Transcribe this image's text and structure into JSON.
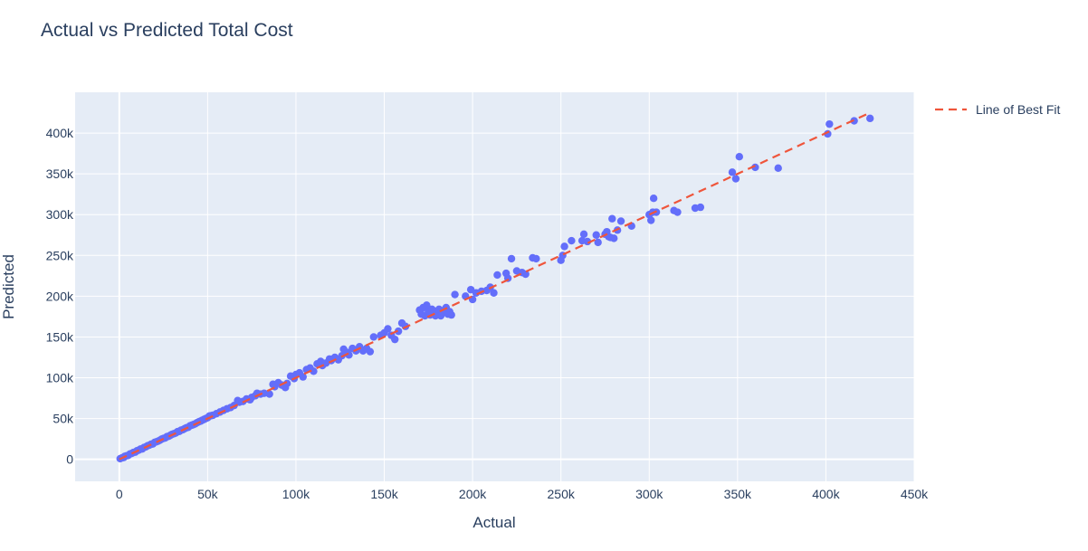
{
  "chart_data": {
    "type": "scatter",
    "title": "Actual vs Predicted Total Cost",
    "xlabel": "Actual",
    "ylabel": "Predicted",
    "xlim": [
      -25000,
      450000
    ],
    "ylim": [
      -27000,
      450000
    ],
    "x_ticks": [
      0,
      50000,
      100000,
      150000,
      200000,
      250000,
      300000,
      350000,
      400000,
      450000
    ],
    "x_tick_labels": [
      "0",
      "50k",
      "100k",
      "150k",
      "200k",
      "250k",
      "300k",
      "350k",
      "400k",
      "450k"
    ],
    "y_ticks": [
      0,
      50000,
      100000,
      150000,
      200000,
      250000,
      300000,
      350000,
      400000
    ],
    "y_tick_labels": [
      "0",
      "50k",
      "100k",
      "150k",
      "200k",
      "250k",
      "300k",
      "350k",
      "400k"
    ],
    "grid": true,
    "legend_position": "top-right",
    "colors": {
      "points": "#636efa",
      "fit_line": "#ef553b",
      "plot_bg": "#e5ecf6",
      "grid": "#ffffff",
      "text": "#2a3f5f"
    },
    "series": [
      {
        "type": "scatter",
        "points": [
          [
            500,
            800
          ],
          [
            1500,
            1800
          ],
          [
            2500,
            2200
          ],
          [
            3000,
            3500
          ],
          [
            4000,
            4300
          ],
          [
            5000,
            4700
          ],
          [
            6000,
            6500
          ],
          [
            7000,
            7200
          ],
          [
            8000,
            8400
          ],
          [
            9000,
            8800
          ],
          [
            10000,
            10500
          ],
          [
            11000,
            11200
          ],
          [
            12000,
            12600
          ],
          [
            13000,
            12800
          ],
          [
            14000,
            14500
          ],
          [
            15000,
            15200
          ],
          [
            16000,
            16600
          ],
          [
            17000,
            17300
          ],
          [
            18000,
            18500
          ],
          [
            19000,
            18900
          ],
          [
            20000,
            20800
          ],
          [
            21000,
            21500
          ],
          [
            22000,
            22300
          ],
          [
            23000,
            23400
          ],
          [
            24000,
            24800
          ],
          [
            25000,
            25600
          ],
          [
            26000,
            26200
          ],
          [
            27000,
            27800
          ],
          [
            28000,
            28300
          ],
          [
            29000,
            29600
          ],
          [
            30000,
            30800
          ],
          [
            31000,
            31500
          ],
          [
            32000,
            32300
          ],
          [
            33000,
            33900
          ],
          [
            34000,
            34300
          ],
          [
            35000,
            35800
          ],
          [
            36000,
            36300
          ],
          [
            37000,
            37600
          ],
          [
            38000,
            38700
          ],
          [
            39000,
            39200
          ],
          [
            40000,
            41000
          ],
          [
            41000,
            41800
          ],
          [
            42000,
            42600
          ],
          [
            43000,
            43500
          ],
          [
            44000,
            44900
          ],
          [
            45000,
            46000
          ],
          [
            46000,
            46800
          ],
          [
            47000,
            48000
          ],
          [
            48000,
            49000
          ],
          [
            49000,
            50000
          ],
          [
            50000,
            51000
          ],
          [
            51000,
            53000
          ],
          [
            52000,
            53500
          ],
          [
            53000,
            54000
          ],
          [
            55000,
            56000
          ],
          [
            57000,
            58000
          ],
          [
            59000,
            60000
          ],
          [
            61000,
            62000
          ],
          [
            63000,
            63500
          ],
          [
            65000,
            66000
          ],
          [
            67000,
            72000
          ],
          [
            68000,
            70000
          ],
          [
            70000,
            71000
          ],
          [
            72000,
            74000
          ],
          [
            74000,
            73000
          ],
          [
            75000,
            76000
          ],
          [
            77000,
            78000
          ],
          [
            78000,
            81000
          ],
          [
            80000,
            80000
          ],
          [
            82000,
            81000
          ],
          [
            85000,
            80000
          ],
          [
            87000,
            92000
          ],
          [
            88000,
            89000
          ],
          [
            90000,
            94000
          ],
          [
            92000,
            91000
          ],
          [
            94000,
            88000
          ],
          [
            95000,
            93000
          ],
          [
            97000,
            102000
          ],
          [
            99000,
            99000
          ],
          [
            100000,
            104000
          ],
          [
            102000,
            106000
          ],
          [
            104000,
            101000
          ],
          [
            106000,
            110000
          ],
          [
            108000,
            112000
          ],
          [
            110000,
            108000
          ],
          [
            112000,
            117000
          ],
          [
            114000,
            120000
          ],
          [
            115000,
            115000
          ],
          [
            117000,
            118000
          ],
          [
            119000,
            123000
          ],
          [
            120000,
            121000
          ],
          [
            122000,
            125000
          ],
          [
            124000,
            122000
          ],
          [
            126000,
            127000
          ],
          [
            127000,
            135000
          ],
          [
            129000,
            131000
          ],
          [
            130000,
            128000
          ],
          [
            132000,
            136000
          ],
          [
            134000,
            133000
          ],
          [
            136000,
            138000
          ],
          [
            138000,
            133000
          ],
          [
            140000,
            136000
          ],
          [
            142000,
            132000
          ],
          [
            144000,
            150000
          ],
          [
            148000,
            152000
          ],
          [
            150000,
            155000
          ],
          [
            152000,
            160000
          ],
          [
            154000,
            152000
          ],
          [
            156000,
            147000
          ],
          [
            158000,
            157000
          ],
          [
            160000,
            167000
          ],
          [
            162000,
            163000
          ],
          [
            170000,
            183000
          ],
          [
            171000,
            178000
          ],
          [
            172000,
            186000
          ],
          [
            173000,
            176000
          ],
          [
            174000,
            189000
          ],
          [
            175000,
            181000
          ],
          [
            176000,
            177000
          ],
          [
            177000,
            184000
          ],
          [
            178000,
            182000
          ],
          [
            179000,
            176000
          ],
          [
            180000,
            179000
          ],
          [
            181000,
            184000
          ],
          [
            182000,
            176000
          ],
          [
            183000,
            180000
          ],
          [
            184000,
            183000
          ],
          [
            185000,
            186000
          ],
          [
            186000,
            178000
          ],
          [
            187000,
            181000
          ],
          [
            188000,
            177000
          ],
          [
            190000,
            202000
          ],
          [
            196000,
            200000
          ],
          [
            199000,
            208000
          ],
          [
            200000,
            196000
          ],
          [
            202000,
            204000
          ],
          [
            205000,
            206000
          ],
          [
            208000,
            207000
          ],
          [
            210000,
            211000
          ],
          [
            212000,
            204000
          ],
          [
            214000,
            226000
          ],
          [
            219000,
            228000
          ],
          [
            220000,
            222000
          ],
          [
            222000,
            246000
          ],
          [
            225000,
            231000
          ],
          [
            228000,
            229000
          ],
          [
            230000,
            227000
          ],
          [
            234000,
            247000
          ],
          [
            236000,
            246000
          ],
          [
            250000,
            244000
          ],
          [
            251000,
            250000
          ],
          [
            252000,
            261000
          ],
          [
            256000,
            268000
          ],
          [
            262000,
            268000
          ],
          [
            263000,
            276000
          ],
          [
            265000,
            267000
          ],
          [
            270000,
            275000
          ],
          [
            271000,
            266000
          ],
          [
            275000,
            276000
          ],
          [
            276000,
            279000
          ],
          [
            277000,
            273000
          ],
          [
            278000,
            272000
          ],
          [
            279000,
            295000
          ],
          [
            280000,
            271000
          ],
          [
            282000,
            281000
          ],
          [
            284000,
            292000
          ],
          [
            290000,
            286000
          ],
          [
            300000,
            300000
          ],
          [
            301000,
            293000
          ],
          [
            302000,
            303000
          ],
          [
            302500,
            320000
          ],
          [
            304000,
            303000
          ],
          [
            314000,
            305000
          ],
          [
            316000,
            303000
          ],
          [
            326000,
            308000
          ],
          [
            329000,
            309000
          ],
          [
            347000,
            352000
          ],
          [
            349000,
            344000
          ],
          [
            351000,
            371000
          ],
          [
            360000,
            358000
          ],
          [
            373000,
            357000
          ],
          [
            401000,
            399000
          ],
          [
            402000,
            411000
          ],
          [
            416000,
            415000
          ],
          [
            425000,
            418000
          ]
        ]
      },
      {
        "type": "line",
        "name": "Line of Best Fit",
        "dash": "dash",
        "points": [
          [
            0,
            0
          ],
          [
            425000,
            425000
          ]
        ]
      }
    ]
  }
}
